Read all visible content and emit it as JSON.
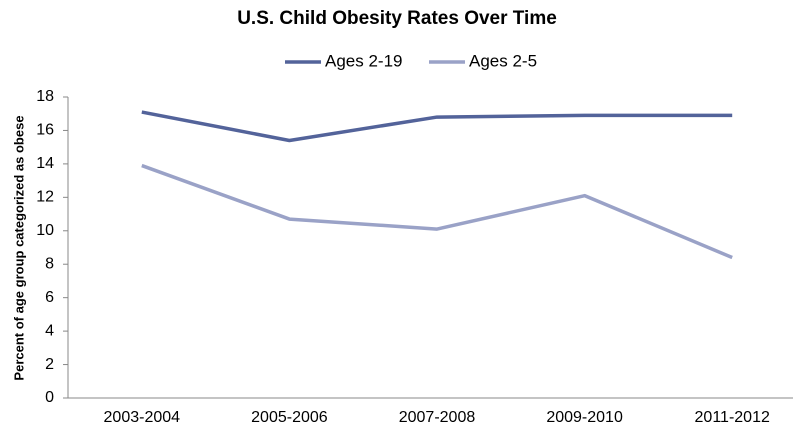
{
  "chart_data": {
    "type": "line",
    "title": "U.S. Child Obesity Rates Over Time",
    "y_label": "Percent of age group categorized as obese",
    "categories": [
      "2003-2004",
      "2005-2006",
      "2007-2008",
      "2009-2010",
      "2011-2012"
    ],
    "series": [
      {
        "name": "Ages 2-19",
        "color": "#53639a",
        "values": [
          17.1,
          15.4,
          16.8,
          16.9,
          16.9
        ]
      },
      {
        "name": "Ages 2-5",
        "color": "#9aa2c7",
        "values": [
          13.9,
          10.7,
          10.1,
          12.1,
          8.4
        ]
      }
    ],
    "ylim": [
      0,
      18
    ],
    "yticks": [
      0,
      2,
      4,
      6,
      8,
      10,
      12,
      14,
      16,
      18
    ],
    "grid": false,
    "legend": "top"
  }
}
